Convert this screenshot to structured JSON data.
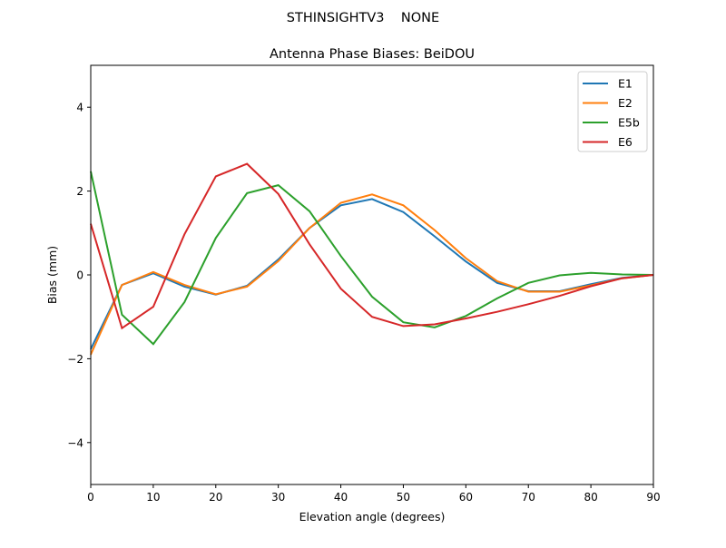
{
  "suptitle": "STHINSIGHTV3    NONE",
  "chart_data": {
    "type": "line",
    "title": "Antenna Phase Biases: BeiDOU",
    "xlabel": "Elevation angle (degrees)",
    "ylabel": "Bias (mm)",
    "xlim": [
      0,
      90
    ],
    "ylim": [
      -5,
      5
    ],
    "xticks": [
      0,
      10,
      20,
      30,
      40,
      50,
      60,
      70,
      80,
      90
    ],
    "yticks": [
      -4,
      -2,
      0,
      2,
      4
    ],
    "ytick_labels": [
      "−4",
      "−2",
      "0",
      "2",
      "4"
    ],
    "grid": false,
    "legend_position": "top-right",
    "x": [
      0,
      5,
      10,
      15,
      20,
      25,
      30,
      35,
      40,
      45,
      50,
      55,
      60,
      65,
      70,
      75,
      80,
      85,
      90
    ],
    "series": [
      {
        "name": "E1",
        "color": "#1f77b4",
        "values": [
          -1.77,
          -0.24,
          0.04,
          -0.28,
          -0.47,
          -0.26,
          0.37,
          1.12,
          1.66,
          1.81,
          1.5,
          0.92,
          0.32,
          -0.19,
          -0.39,
          -0.39,
          -0.22,
          -0.07,
          0
        ]
      },
      {
        "name": "E2",
        "color": "#ff7f0e",
        "values": [
          -1.9,
          -0.24,
          0.07,
          -0.24,
          -0.46,
          -0.28,
          0.33,
          1.12,
          1.72,
          1.92,
          1.66,
          1.07,
          0.4,
          -0.15,
          -0.4,
          -0.4,
          -0.25,
          -0.08,
          0
        ]
      },
      {
        "name": "E5b",
        "color": "#2ca02c",
        "values": [
          2.47,
          -0.95,
          -1.65,
          -0.65,
          0.88,
          1.95,
          2.14,
          1.52,
          0.45,
          -0.52,
          -1.13,
          -1.25,
          -0.98,
          -0.56,
          -0.19,
          -0.01,
          0.05,
          0.01,
          0
        ]
      },
      {
        "name": "E6",
        "color": "#d62728",
        "values": [
          1.22,
          -1.27,
          -0.76,
          0.97,
          2.35,
          2.65,
          1.93,
          0.73,
          -0.33,
          -1.0,
          -1.22,
          -1.18,
          -1.04,
          -0.88,
          -0.7,
          -0.5,
          -0.27,
          -0.08,
          0
        ]
      }
    ]
  }
}
